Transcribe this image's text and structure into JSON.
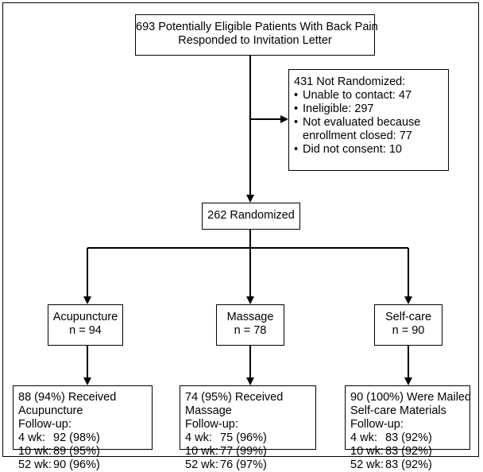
{
  "enrolled": {
    "line1": "693 Potentially Eligible Patients With Back Pain",
    "line2": "Responded to Invitation Letter"
  },
  "excluded": {
    "title": "431 Not Randomized:",
    "bullet": "•",
    "items": [
      "Unable to contact: 47",
      "Ineligible:  297",
      "Not evaluated because",
      "enrollment closed: 77",
      "Did not consent: 10"
    ]
  },
  "randomized": {
    "label": "262 Randomized"
  },
  "arms": [
    {
      "name": "Acupuncture",
      "n": "n = 94",
      "received_line1": "88 (94%) Received",
      "received_line2": "Acupuncture",
      "followup_label": "Follow-up:",
      "followup": [
        {
          "week": "4 wk:",
          "value": "92 (98%)"
        },
        {
          "week": "10 wk:",
          "value": "89 (95%)"
        },
        {
          "week": "52 wk:",
          "value": "90 (96%)"
        }
      ]
    },
    {
      "name": "Massage",
      "n": "n = 78",
      "received_line1": "74 (95%) Received",
      "received_line2": "Massage",
      "followup_label": "Follow-up:",
      "followup": [
        {
          "week": "4 wk:",
          "value": "75 (96%)"
        },
        {
          "week": "10 wk:",
          "value": "77 (99%)"
        },
        {
          "week": "52 wk:",
          "value": "76 (97%)"
        }
      ]
    },
    {
      "name": "Self-care",
      "n": "n = 90",
      "received_line1": "90 (100%) Were Mailed",
      "received_line2": "Self-care Materials",
      "followup_label": "Follow-up:",
      "followup": [
        {
          "week": "4 wk:",
          "value": "83 (92%)"
        },
        {
          "week": "10 wk:",
          "value": "83 (92%)"
        },
        {
          "week": "52 wk:",
          "value": "83 (92%)"
        }
      ]
    }
  ]
}
